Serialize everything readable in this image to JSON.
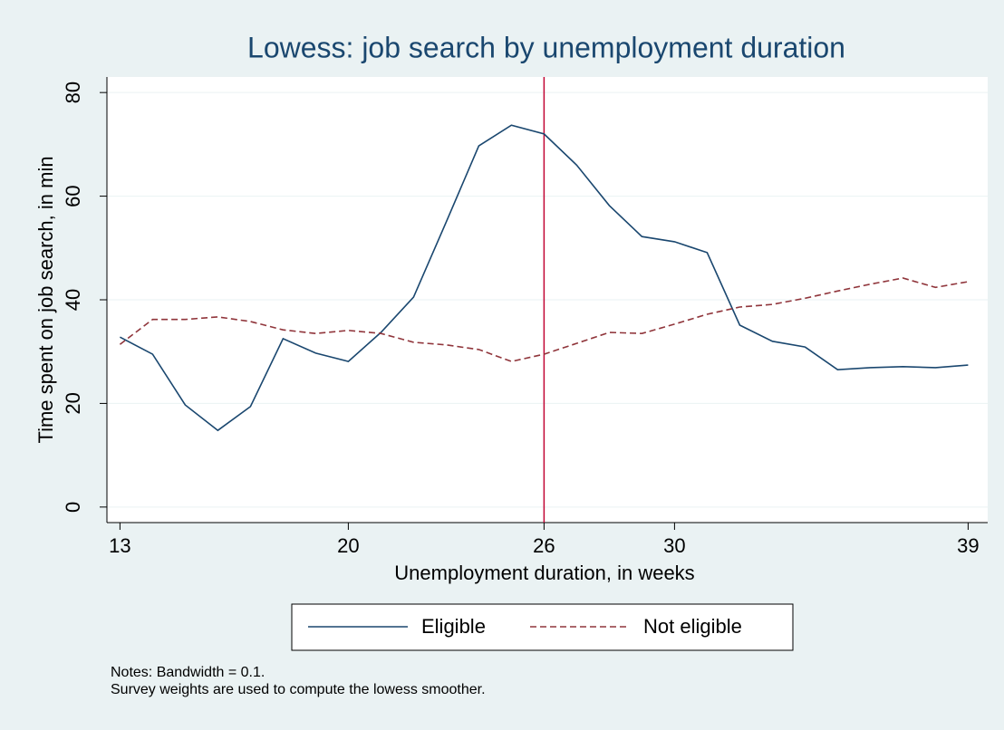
{
  "chart_data": {
    "type": "line",
    "title": "Lowess: job search by unemployment duration",
    "x_label": "Unemployment duration, in weeks",
    "y_label": "Time spent on job search, in min",
    "x": [
      13,
      14,
      15,
      16,
      17,
      18,
      19,
      20,
      21,
      22,
      23,
      24,
      25,
      26,
      27,
      28,
      29,
      30,
      31,
      32,
      33,
      34,
      35,
      36,
      37,
      38,
      39
    ],
    "series": [
      {
        "name": "Eligible",
        "color": "#1a476f",
        "dash": false,
        "values": [
          32.8,
          29.5,
          19.7,
          14.8,
          19.4,
          32.5,
          29.7,
          28.1,
          33.7,
          40.5,
          55.0,
          69.7,
          73.7,
          72.0,
          66.0,
          58.2,
          52.2,
          51.2,
          49.1,
          35.1,
          32.0,
          30.9,
          26.5,
          26.9,
          27.1,
          26.9,
          27.4
        ]
      },
      {
        "name": "Not eligible",
        "color": "#90353b",
        "dash": true,
        "values": [
          31.4,
          36.2,
          36.2,
          36.7,
          35.8,
          34.2,
          33.5,
          34.1,
          33.5,
          31.8,
          31.3,
          30.4,
          28.1,
          29.5,
          31.6,
          33.7,
          33.5,
          35.3,
          37.2,
          38.6,
          39.1,
          40.3,
          41.7,
          43.0,
          44.2,
          42.4,
          43.5
        ]
      }
    ],
    "vline": 26,
    "vline_color": "#c10534",
    "xlim": [
      12.6,
      39.6
    ],
    "xticks": [
      13,
      20,
      26,
      30,
      39
    ],
    "ylim": [
      -3,
      83
    ],
    "yticks": [
      0,
      20,
      40,
      60,
      80
    ],
    "grid": true,
    "notes": [
      "Notes: Bandwidth = 0.1.",
      "Survey weights are used to compute the lowess smoother."
    ]
  }
}
